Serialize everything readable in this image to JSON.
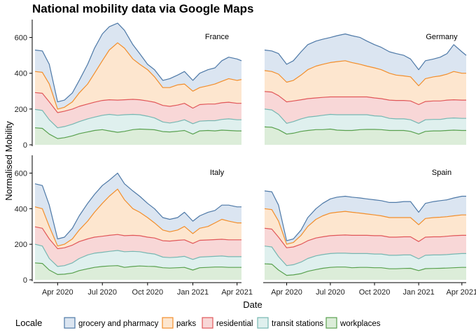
{
  "chart_data": {
    "type": "area",
    "stacked": true,
    "title": "National mobility data via Google Maps",
    "xlabel": "Date",
    "ylabel": "Normalised Mobility",
    "ylim": [
      0,
      700
    ],
    "y_ticks": [
      "0",
      "200",
      "400",
      "600"
    ],
    "x_ticks": [
      "Apr 2020",
      "Jul 2020",
      "Oct 2020",
      "Jan 2021",
      "Apr 2021"
    ],
    "x_tick_dates": [
      "2020-04-01",
      "2020-07-01",
      "2020-10-01",
      "2021-01-01",
      "2021-04-01"
    ],
    "x_range": [
      "2020-02-15",
      "2021-04-10"
    ],
    "x_dates": [
      "2020-02-15",
      "2020-03-01",
      "2020-03-15",
      "2020-04-01",
      "2020-04-15",
      "2020-05-01",
      "2020-05-15",
      "2020-06-01",
      "2020-06-15",
      "2020-07-01",
      "2020-07-15",
      "2020-08-01",
      "2020-08-15",
      "2020-09-01",
      "2020-09-15",
      "2020-10-01",
      "2020-10-15",
      "2020-11-01",
      "2020-11-15",
      "2020-12-01",
      "2020-12-15",
      "2021-01-01",
      "2021-01-15",
      "2021-02-01",
      "2021-02-15",
      "2021-03-01",
      "2021-03-15",
      "2021-04-01",
      "2021-04-10"
    ],
    "grid": false,
    "legend_position": "bottom",
    "legend_title": "Locale",
    "series_order_bottom_to_top": [
      "workplaces",
      "transit stations",
      "residential",
      "parks",
      "grocery and pharmacy"
    ],
    "legend": [
      {
        "name": "grocery and pharmacy",
        "line": "#4e79a7",
        "fill": "#dbe5f1"
      },
      {
        "name": "parks",
        "line": "#f28e2b",
        "fill": "#fde6cf"
      },
      {
        "name": "residential",
        "line": "#e15759",
        "fill": "#f8d7d7"
      },
      {
        "name": "transit stations",
        "line": "#76b7b2",
        "fill": "#dff0ee"
      },
      {
        "name": "workplaces",
        "line": "#59a14f",
        "fill": "#dcedd9"
      }
    ],
    "panels": [
      {
        "label": "France",
        "series": [
          {
            "name": "workplaces",
            "values": [
              95,
              92,
              60,
              35,
              40,
              50,
              62,
              72,
              80,
              85,
              78,
              70,
              75,
              85,
              88,
              86,
              84,
              74,
              72,
              76,
              80,
              60,
              78,
              80,
              78,
              82,
              80,
              78,
              78
            ]
          },
          {
            "name": "transit stations",
            "values": [
              198,
              192,
              140,
              95,
              102,
              115,
              130,
              145,
              155,
              165,
              170,
              165,
              168,
              170,
              168,
              160,
              150,
              128,
              122,
              130,
              140,
              118,
              132,
              135,
              135,
              142,
              145,
              140,
              140
            ]
          },
          {
            "name": "residential",
            "values": [
              292,
              288,
              240,
              180,
              188,
              200,
              215,
              228,
              238,
              248,
              252,
              250,
              252,
              254,
              252,
              245,
              238,
              220,
              215,
              222,
              232,
              205,
              225,
              228,
              228,
              235,
              238,
              232,
              232
            ]
          },
          {
            "name": "parks",
            "values": [
              410,
              405,
              340,
              200,
              210,
              240,
              290,
              340,
              400,
              470,
              530,
              570,
              540,
              480,
              450,
              420,
              380,
              320,
              320,
              335,
              340,
              300,
              320,
              330,
              340,
              355,
              370,
              360,
              365
            ]
          },
          {
            "name": "grocery and pharmacy",
            "values": [
              530,
              525,
              450,
              240,
              250,
              290,
              360,
              450,
              540,
              620,
              660,
              680,
              640,
              560,
              510,
              450,
              420,
              360,
              370,
              390,
              410,
              360,
              400,
              420,
              430,
              470,
              490,
              480,
              470
            ]
          }
        ]
      },
      {
        "label": "Germany",
        "series": [
          {
            "name": "workplaces",
            "values": [
              100,
              98,
              85,
              60,
              65,
              75,
              80,
              85,
              85,
              88,
              82,
              80,
              80,
              85,
              86,
              86,
              85,
              80,
              80,
              80,
              75,
              60,
              75,
              78,
              78,
              80,
              82,
              80,
              80
            ]
          },
          {
            "name": "transit stations",
            "values": [
              200,
              195,
              170,
              120,
              130,
              145,
              155,
              160,
              165,
              170,
              168,
              168,
              168,
              168,
              168,
              162,
              160,
              148,
              145,
              145,
              140,
              120,
              140,
              142,
              142,
              148,
              150,
              148,
              148
            ]
          },
          {
            "name": "residential",
            "values": [
              298,
              295,
              275,
              240,
              245,
              252,
              258,
              262,
              265,
              268,
              268,
              268,
              268,
              268,
              268,
              262,
              258,
              250,
              248,
              248,
              245,
              225,
              242,
              245,
              245,
              250,
              252,
              250,
              250
            ]
          },
          {
            "name": "parks",
            "values": [
              415,
              410,
              395,
              350,
              360,
              390,
              420,
              440,
              450,
              460,
              465,
              470,
              460,
              450,
              440,
              430,
              420,
              400,
              390,
              385,
              380,
              330,
              370,
              380,
              385,
              395,
              410,
              400,
              400
            ]
          },
          {
            "name": "grocery and pharmacy",
            "values": [
              530,
              525,
              510,
              450,
              470,
              520,
              560,
              580,
              590,
              600,
              610,
              620,
              610,
              600,
              580,
              560,
              545,
              520,
              510,
              500,
              480,
              420,
              470,
              480,
              490,
              510,
              560,
              520,
              500
            ]
          }
        ]
      },
      {
        "label": "Italy",
        "series": [
          {
            "name": "workplaces",
            "values": [
              95,
              92,
              55,
              30,
              32,
              38,
              52,
              62,
              70,
              75,
              78,
              80,
              70,
              75,
              78,
              76,
              75,
              68,
              66,
              68,
              70,
              55,
              68,
              70,
              72,
              72,
              70,
              70,
              70
            ]
          },
          {
            "name": "transit stations",
            "values": [
              200,
              190,
              120,
              75,
              80,
              95,
              120,
              140,
              150,
              155,
              160,
              165,
              158,
              160,
              158,
              150,
              145,
              128,
              125,
              128,
              132,
              115,
              128,
              130,
              132,
              134,
              130,
              130,
              130
            ]
          },
          {
            "name": "residential",
            "values": [
              298,
              290,
              230,
              175,
              180,
              195,
              215,
              230,
              240,
              245,
              250,
              255,
              248,
              250,
              248,
              240,
              235,
              220,
              218,
              222,
              225,
              205,
              222,
              224,
              226,
              228,
              225,
              225,
              225
            ]
          },
          {
            "name": "parks",
            "values": [
              410,
              400,
              300,
              190,
              200,
              230,
              280,
              330,
              380,
              430,
              470,
              510,
              450,
              400,
              380,
              350,
              320,
              280,
              270,
              280,
              300,
              260,
              290,
              300,
              320,
              340,
              330,
              320,
              320
            ]
          },
          {
            "name": "grocery and pharmacy",
            "values": [
              540,
              530,
              420,
              230,
              240,
              290,
              360,
              430,
              480,
              530,
              560,
              600,
              540,
              500,
              470,
              430,
              400,
              350,
              340,
              350,
              380,
              330,
              360,
              380,
              390,
              420,
              420,
              410,
              410
            ]
          }
        ]
      },
      {
        "label": "Spain",
        "series": [
          {
            "name": "workplaces",
            "values": [
              90,
              88,
              55,
              25,
              28,
              35,
              48,
              58,
              65,
              70,
              72,
              72,
              68,
              70,
              70,
              68,
              68,
              62,
              62,
              64,
              65,
              52,
              63,
              64,
              65,
              66,
              68,
              70,
              70
            ]
          },
          {
            "name": "transit stations",
            "values": [
              190,
              185,
              130,
              80,
              85,
              100,
              120,
              135,
              142,
              148,
              150,
              150,
              148,
              148,
              148,
              145,
              145,
              138,
              138,
              140,
              140,
              118,
              138,
              140,
              140,
              142,
              145,
              148,
              148
            ]
          },
          {
            "name": "residential",
            "values": [
              290,
              285,
              240,
              180,
              185,
              200,
              220,
              235,
              242,
              248,
              250,
              252,
              250,
              250,
              250,
              248,
              248,
              240,
              240,
              242,
              242,
              215,
              240,
              242,
              242,
              245,
              248,
              250,
              250
            ]
          },
          {
            "name": "parks",
            "values": [
              400,
              395,
              330,
              200,
              210,
              250,
              300,
              340,
              360,
              375,
              380,
              385,
              380,
              375,
              370,
              365,
              360,
              350,
              350,
              350,
              350,
              310,
              345,
              350,
              352,
              355,
              360,
              365,
              365
            ]
          },
          {
            "name": "grocery and pharmacy",
            "values": [
              500,
              495,
              420,
              220,
              230,
              280,
              350,
              400,
              430,
              455,
              465,
              470,
              465,
              460,
              455,
              450,
              445,
              435,
              435,
              440,
              440,
              380,
              430,
              440,
              445,
              450,
              460,
              470,
              470
            ]
          }
        ]
      }
    ]
  }
}
